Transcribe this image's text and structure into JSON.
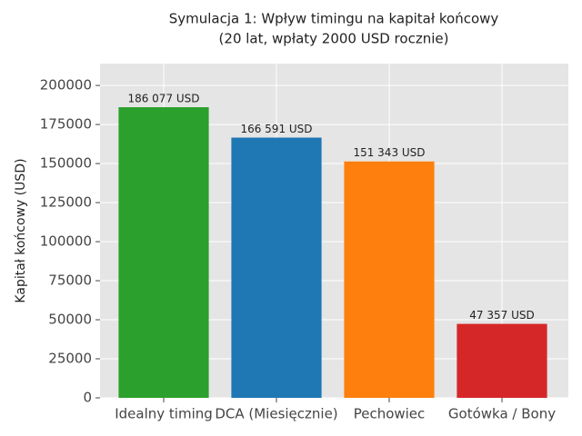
{
  "chart_data": {
    "type": "bar",
    "title": "Symulacja 1: Wpływ timingu na kapitał końcowy",
    "subtitle": "(20 lat, wpłaty 2000 USD rocznie)",
    "y_label": "Kapitał końcowy (USD)",
    "categories": [
      "Idealny timing",
      "DCA (Miesięcznie)",
      "Pechowiec",
      "Gotówka / Bony"
    ],
    "values": [
      186077,
      166591,
      151343,
      47357
    ],
    "value_labels": [
      "186 077 USD",
      "166 591 USD",
      "151 343 USD",
      "47 357 USD"
    ],
    "colors": [
      "#2ca02c",
      "#1f77b4",
      "#ff7f0e",
      "#d62728"
    ],
    "ylim": [
      0,
      214000
    ],
    "yticks": [
      0,
      25000,
      50000,
      75000,
      100000,
      125000,
      150000,
      175000,
      200000
    ],
    "grid": true
  }
}
